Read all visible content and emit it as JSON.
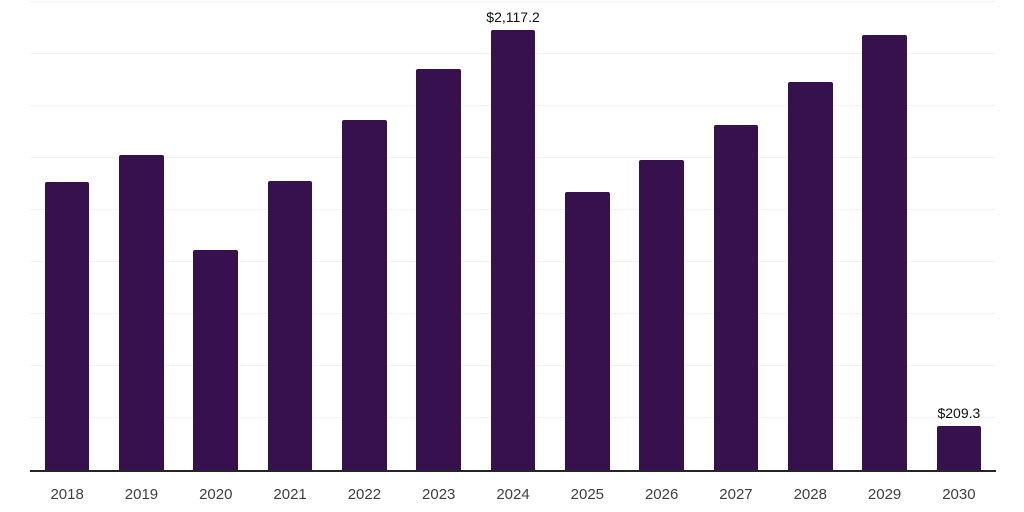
{
  "chart_data": {
    "type": "bar",
    "title": "",
    "xlabel": "",
    "ylabel": "",
    "categories": [
      "2018",
      "2019",
      "2020",
      "2021",
      "2022",
      "2023",
      "2024",
      "2025",
      "2026",
      "2027",
      "2028",
      "2029",
      "2030"
    ],
    "values": [
      1385,
      1515,
      1060,
      1390,
      1685,
      1930,
      2117.2,
      1335,
      1490,
      1660,
      1865,
      2090,
      209.3
    ],
    "data_labels": [
      "",
      "",
      "",
      "",
      "",
      "",
      "$2,117.2",
      "",
      "",
      "",
      "",
      "",
      "$209.3"
    ],
    "ylim": [
      0,
      2250
    ],
    "gridline_interval": 250,
    "grid": true,
    "legend_position": "none",
    "colors": {
      "bar": "#36114e",
      "axis_line": "#262626",
      "gridline": "#f2f2f2",
      "tick_label": "#404040",
      "data_label": "#111111",
      "background": "#ffffff"
    }
  }
}
